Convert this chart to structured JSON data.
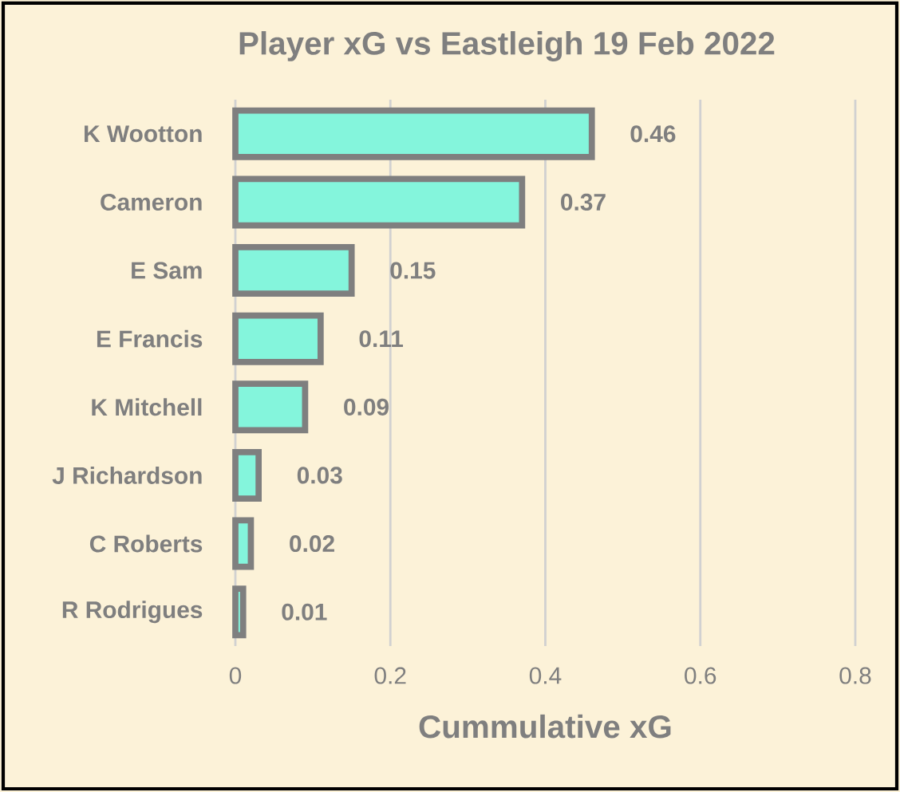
{
  "chart_data": {
    "type": "bar",
    "orientation": "horizontal",
    "title": "Player xG vs Eastleigh 19 Feb 2022",
    "xlabel": "Cummulative xG",
    "categories": [
      "K Wootton",
      "Cameron",
      "E Sam",
      "E Francis",
      "K Mitchell",
      "J Richardson",
      "C Roberts",
      "R Rodrigues"
    ],
    "values": [
      0.46,
      0.37,
      0.15,
      0.11,
      0.09,
      0.03,
      0.02,
      0.01
    ],
    "color": "#84f5dc",
    "data_labels": true,
    "xlim": [
      0,
      0.8
    ],
    "xticks": [
      0,
      0.2,
      0.4,
      0.6,
      0.8
    ],
    "grid": "x"
  }
}
